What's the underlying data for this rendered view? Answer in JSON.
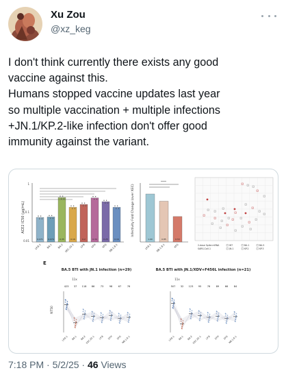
{
  "author": {
    "name": "Xu Zou",
    "handle": "@xz_keg"
  },
  "tweet": {
    "lines": [
      "I don't think currently there exists any good",
      "vaccine against this.",
      "Humans stopped vaccine updates last year",
      "so multiple vaccination + multiple infections",
      "+JN.1/KP.2-like infection don't offer good",
      "immunity against the variant."
    ]
  },
  "meta": {
    "time": "7:18 PM",
    "separator": "·",
    "date": "5/2/25",
    "views_count": "46",
    "views_label": "Views"
  },
  "figure": {
    "panel_e_letter": "E",
    "left_title": "BA.5 BTI with JN.1 infection (n=29)",
    "right_title": "BA.5 BTI with JN.1/XDV+F456L infection (n=21)",
    "ylabel_nt50": "NT50",
    "ylabel_ace2": "ACE2 IC50 (µg/mL)",
    "ylabel_fold": "Infectivity Fold Change (over XEC)",
    "fold_reference": "11x",
    "bar_categories": [
      "LP.8.1",
      "BA.1",
      "BA.2",
      "XEC.25.1",
      "LP.8",
      "XFH",
      "XFG",
      "NB.1.8.1"
    ],
    "bar_values": [
      0.071,
      0.074,
      0.35,
      0.16,
      0.2,
      0.34,
      0.25,
      0.16
    ],
    "bar_colors": [
      "#8fb3c9",
      "#6d9eb8",
      "#9ab65f",
      "#d9a84a",
      "#c0645a",
      "#b56a9b",
      "#7a6aa8",
      "#6a8fc0"
    ],
    "fold_categories": [
      "LP.8.1",
      "NB.1.8.1",
      "XFG"
    ],
    "fold_values": [
      1.0,
      0.85,
      0.53
    ],
    "left_values": [
      "423",
      "37",
      "118",
      "86",
      "73",
      "98",
      "67",
      "76"
    ],
    "right_values": [
      "507",
      "32",
      "123",
      "95",
      "76",
      "89",
      "66",
      "84"
    ],
    "legend_items": [
      "WT",
      "BA.1",
      "BA.5",
      "JN.1",
      "KP.2",
      "KP.3"
    ],
    "legend_title": "2-dose Spike mRNA",
    "legend_item2": "SARS-CoV-1"
  },
  "colors": {
    "text": "#0f1419",
    "muted": "#536471",
    "border": "#cfd9de"
  }
}
